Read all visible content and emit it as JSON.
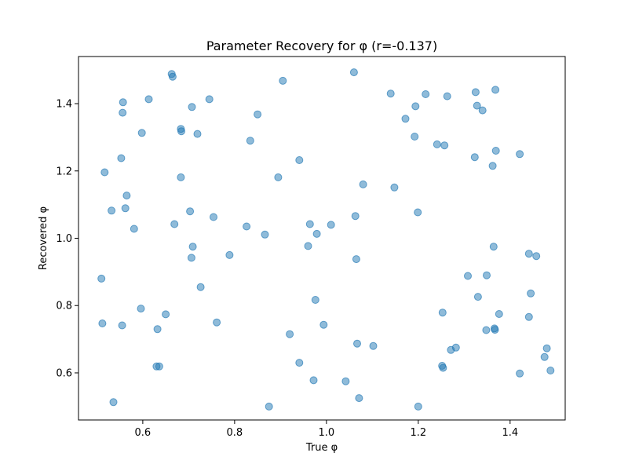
{
  "chart_data": {
    "type": "scatter",
    "title": "Parameter Recovery for φ (r=-0.137)",
    "xlabel": "True φ",
    "ylabel": "Recovered φ",
    "xlim": [
      0.46,
      1.52
    ],
    "ylim": [
      0.46,
      1.54
    ],
    "xticks": [
      0.6,
      0.8,
      1.0,
      1.2,
      1.4
    ],
    "xtick_labels": [
      "0.6",
      "0.8",
      "1.0",
      "1.2",
      "1.4"
    ],
    "yticks": [
      0.6,
      0.8,
      1.0,
      1.2,
      1.4
    ],
    "ytick_labels": [
      "0.6",
      "0.8",
      "1.0",
      "1.2",
      "1.4"
    ],
    "grid": false,
    "legend": "none",
    "marker_color": "#1f77b4",
    "marker_alpha": 0.5,
    "x": [
      0.663,
      0.665,
      0.905,
      1.06,
      0.557,
      0.613,
      0.707,
      0.745,
      0.556,
      0.598,
      0.684,
      0.683,
      0.719,
      0.85,
      0.834,
      0.553,
      0.517,
      0.683,
      0.565,
      0.532,
      0.562,
      0.703,
      0.754,
      0.581,
      0.669,
      0.709,
      0.706,
      0.789,
      0.826,
      0.866,
      0.895,
      0.941,
      1.08,
      0.964,
      0.979,
      1.01,
      1.063,
      0.96,
      1.065,
      1.14,
      1.216,
      1.194,
      1.172,
      1.192,
      1.148,
      1.199,
      1.325,
      1.368,
      1.328,
      1.34,
      1.263,
      1.241,
      1.257,
      1.369,
      1.323,
      1.421,
      1.362,
      1.364,
      1.441,
      1.457,
      1.308,
      1.349,
      1.445,
      1.33,
      0.51,
      0.512,
      0.596,
      0.555,
      0.65,
      0.632,
      0.726,
      0.761,
      0.92,
      0.976,
      0.994,
      0.941,
      1.067,
      1.102,
      1.071,
      0.972,
      1.042,
      0.875,
      1.2,
      0.536,
      0.63,
      0.636,
      1.253,
      1.252,
      1.271,
      1.282,
      1.254,
      1.348,
      1.376,
      1.366,
      1.367,
      1.441,
      1.421,
      1.48,
      1.475,
      1.488
    ],
    "y": [
      1.488,
      1.48,
      1.468,
      1.493,
      1.404,
      1.413,
      1.39,
      1.413,
      1.373,
      1.313,
      1.318,
      1.325,
      1.31,
      1.368,
      1.29,
      1.238,
      1.196,
      1.181,
      1.127,
      1.082,
      1.089,
      1.08,
      1.063,
      1.028,
      1.042,
      0.975,
      0.942,
      0.95,
      1.035,
      1.011,
      1.181,
      1.232,
      1.16,
      1.042,
      1.013,
      1.04,
      1.066,
      0.977,
      0.938,
      1.43,
      1.428,
      1.392,
      1.355,
      1.302,
      1.151,
      1.077,
      1.434,
      1.441,
      1.394,
      1.38,
      1.422,
      1.279,
      1.276,
      1.26,
      1.241,
      1.25,
      1.215,
      0.975,
      0.954,
      0.947,
      0.888,
      0.89,
      0.836,
      0.826,
      0.88,
      0.747,
      0.791,
      0.741,
      0.774,
      0.73,
      0.855,
      0.75,
      0.715,
      0.817,
      0.743,
      0.63,
      0.687,
      0.68,
      0.525,
      0.578,
      0.575,
      0.5,
      0.5,
      0.513,
      0.619,
      0.619,
      0.779,
      0.621,
      0.668,
      0.675,
      0.615,
      0.727,
      0.775,
      0.732,
      0.728,
      0.766,
      0.598,
      0.673,
      0.647,
      0.607
    ]
  }
}
